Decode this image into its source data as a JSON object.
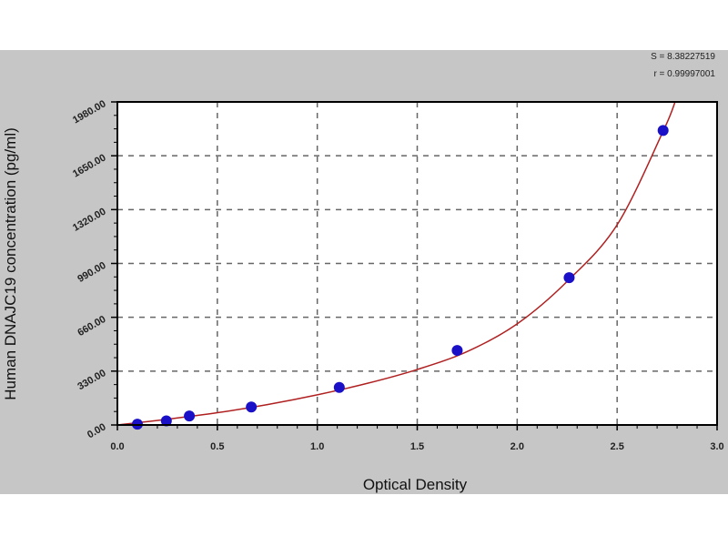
{
  "chart_data": {
    "type": "scatter",
    "xlabel": "Optical Density",
    "ylabel": "Human DNAJC19 concentration (pg/ml)",
    "xlim": [
      0,
      3.0
    ],
    "ylim": [
      0,
      1980
    ],
    "x_ticks": [
      "0.0",
      "0.5",
      "1.0",
      "1.5",
      "2.0",
      "2.5",
      "3.0"
    ],
    "y_ticks": [
      "0.00",
      "330.00",
      "660.00",
      "990.00",
      "1320.00",
      "1650.00",
      "1980.00"
    ],
    "grid": true,
    "stats": [
      "S = 8.38227519",
      "r = 0.99997001"
    ],
    "points": {
      "x": [
        0.1,
        0.245,
        0.36,
        0.67,
        1.11,
        1.7,
        2.26,
        2.73
      ],
      "y": [
        5,
        25,
        55,
        110,
        230,
        457,
        903,
        1805
      ]
    },
    "fit_curve": {
      "x": [
        0,
        0.25,
        0.5,
        0.75,
        1.0,
        1.25,
        1.5,
        1.75,
        2.0,
        2.25,
        2.5,
        2.73,
        2.79
      ],
      "y": [
        0,
        35,
        75,
        125,
        185,
        255,
        340,
        450,
        620,
        880,
        1227,
        1800,
        1980
      ]
    },
    "colors": {
      "points": "#1a10c8",
      "curve": "#b02020",
      "background": "#c6c6c6",
      "plot": "#ffffff"
    }
  }
}
